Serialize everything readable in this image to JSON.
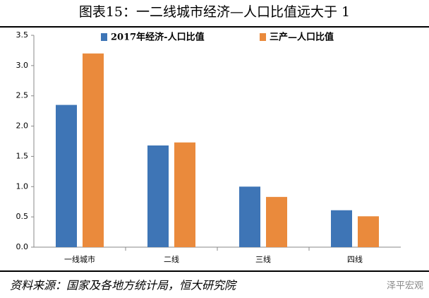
{
  "chart_data": {
    "type": "bar",
    "title": "图表15：一二线城市经济—人口比值远大于 1",
    "categories": [
      "一线城市",
      "二线",
      "三线",
      "四线"
    ],
    "series": [
      {
        "name": "2017年经济-人口比值",
        "color": "#3e75b6",
        "values": [
          2.35,
          1.68,
          1.0,
          0.61
        ]
      },
      {
        "name": "三产—人口比值",
        "color": "#ea8a3c",
        "values": [
          3.2,
          1.73,
          0.83,
          0.51
        ]
      }
    ],
    "ylim": [
      0,
      3.5
    ],
    "yticks": [
      {
        "value": 0,
        "label": "0.0"
      },
      0.5,
      {
        "value": 1,
        "label": "1.0"
      },
      1.5,
      {
        "value": 2,
        "label": "2.0"
      },
      2.5,
      {
        "value": 3,
        "label": "3.0"
      },
      3.5
    ],
    "source": "资料来源：国家及各地方统计局，恒大研究院",
    "watermark": "泽平宏观"
  }
}
